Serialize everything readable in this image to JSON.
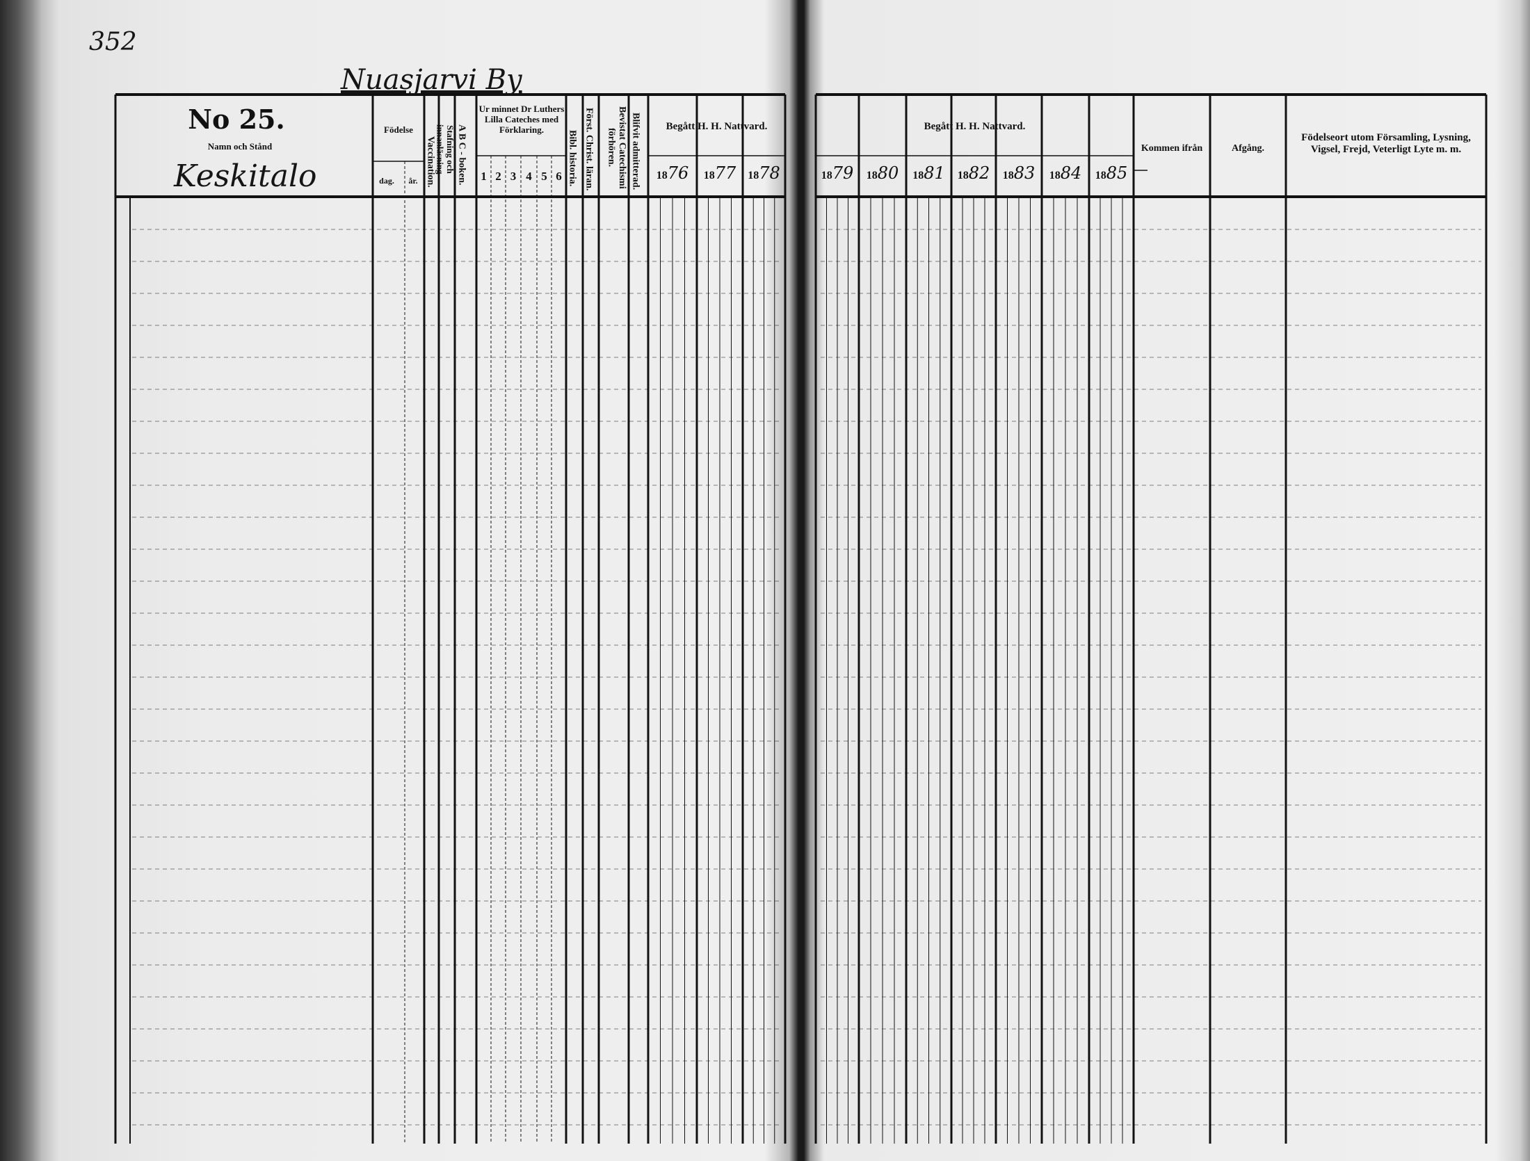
{
  "page_number": "352",
  "village": "Nuasjarvi By",
  "household": {
    "number": "No 25.",
    "name_header": "Namn och Stånd",
    "farm_name": "Keskitalo"
  },
  "left_headers": {
    "fodelse": "Födelse",
    "dag": "dag.",
    "ar": "år.",
    "vaccination": "Vaccination.",
    "stafning": "Stafning och innanläsning",
    "abc": "A B C - boken.",
    "catechism": "Ur minnet Dr Luthers Lilla Cateches med Förklaring.",
    "catechism_parts": [
      "1",
      "2",
      "3",
      "4",
      "5",
      "6"
    ],
    "bibl": "Bibl. historia.",
    "forst": "Först. Christ. läran.",
    "bevistat": "Bevistat Catechismi förhören.",
    "blifvit": "Blifvit admitterad.",
    "nattvard": "Begått H. H. Nattvard.",
    "years": [
      {
        "printed": "18",
        "hand": "76"
      },
      {
        "printed": "18",
        "hand": "77"
      },
      {
        "printed": "18",
        "hand": "78"
      }
    ]
  },
  "right_headers": {
    "nattvard": "Begått H. H. Nattvard.",
    "years": [
      {
        "printed": "18",
        "hand": "79"
      },
      {
        "printed": "18",
        "hand": "80"
      },
      {
        "printed": "18",
        "hand": "81"
      },
      {
        "printed": "18",
        "hand": "82"
      },
      {
        "printed": "18",
        "hand": "83"
      },
      {
        "printed": "18",
        "hand": "84"
      },
      {
        "printed": "18",
        "hand": "85"
      }
    ],
    "kommen": "Kommen ifrån",
    "afgang": "Afgång.",
    "fodelseort": "Födelseort utom Församling, Lysning, Vigsel, Frejd, Veterligt Lyte m. m."
  },
  "colors": {
    "ink": "#111111",
    "paper": "#efefef",
    "spine": "#1a1a1a"
  }
}
